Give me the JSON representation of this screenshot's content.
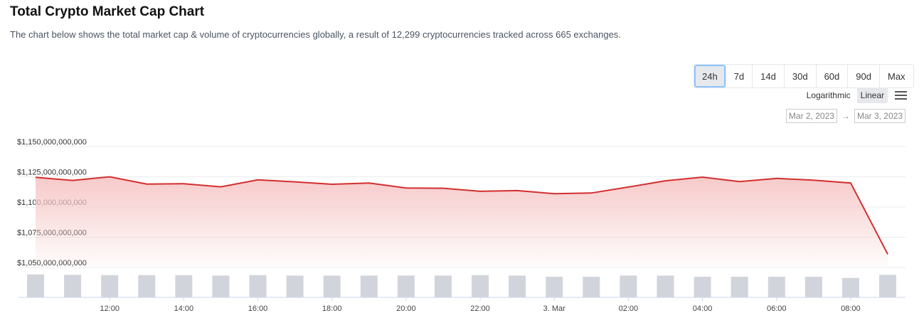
{
  "header": {
    "title": "Total Crypto Market Cap Chart",
    "subtitle": "The chart below shows the total market cap & volume of cryptocurrencies globally, a result of 12,299 cryptocurrencies tracked across 665 exchanges."
  },
  "controls": {
    "ranges": [
      "24h",
      "7d",
      "14d",
      "30d",
      "60d",
      "90d",
      "Max"
    ],
    "active_range": "24h",
    "scale_log_label": "Logarithmic",
    "scale_linear_label": "Linear",
    "active_scale": "Linear",
    "date_from": "Mar 2, 2023",
    "date_arrow": "→",
    "date_to": "Mar 3, 2023"
  },
  "colors": {
    "line": "#d32f2f",
    "area": "#f6c7c7",
    "volume_bar": "#d1d5db",
    "grid": "#e9ecef"
  },
  "chart_data": {
    "type": "area",
    "title": "",
    "xlabel": "",
    "ylabel": "",
    "x_tick_labels": [
      "12:00",
      "14:00",
      "16:00",
      "18:00",
      "20:00",
      "22:00",
      "3. Mar",
      "02:00",
      "04:00",
      "06:00",
      "08:00"
    ],
    "y_tick_labels": [
      "$1,150,000,000,000",
      "$1,125,000,000,000",
      "$1,100,000,000,000",
      "$1,075,000,000,000",
      "$1,050,000,000,000"
    ],
    "ylim": [
      1050000000000,
      1150000000000
    ],
    "x_start_hour": 10,
    "x_step_hours": 1,
    "series": [
      {
        "type": "line",
        "values": [
          1124500000000,
          1122000000000,
          1125000000000,
          1119000000000,
          1119300000000,
          1116700000000,
          1122500000000,
          1120800000000,
          1118800000000,
          1119800000000,
          1115700000000,
          1115500000000,
          1113000000000,
          1113600000000,
          1111000000000,
          1111600000000,
          1116500000000,
          1121700000000,
          1124700000000,
          1121000000000,
          1123700000000,
          1122200000000,
          1119900000000,
          1061000000000
        ]
      },
      {
        "type": "bar",
        "relative_values": [
          0.98,
          0.96,
          0.95,
          0.95,
          0.95,
          0.93,
          0.95,
          0.93,
          0.93,
          0.93,
          0.93,
          0.93,
          0.95,
          0.93,
          0.88,
          0.88,
          0.93,
          0.93,
          0.88,
          0.88,
          0.88,
          0.88,
          0.83,
          0.96
        ]
      }
    ],
    "grid": true,
    "legend": "none"
  }
}
